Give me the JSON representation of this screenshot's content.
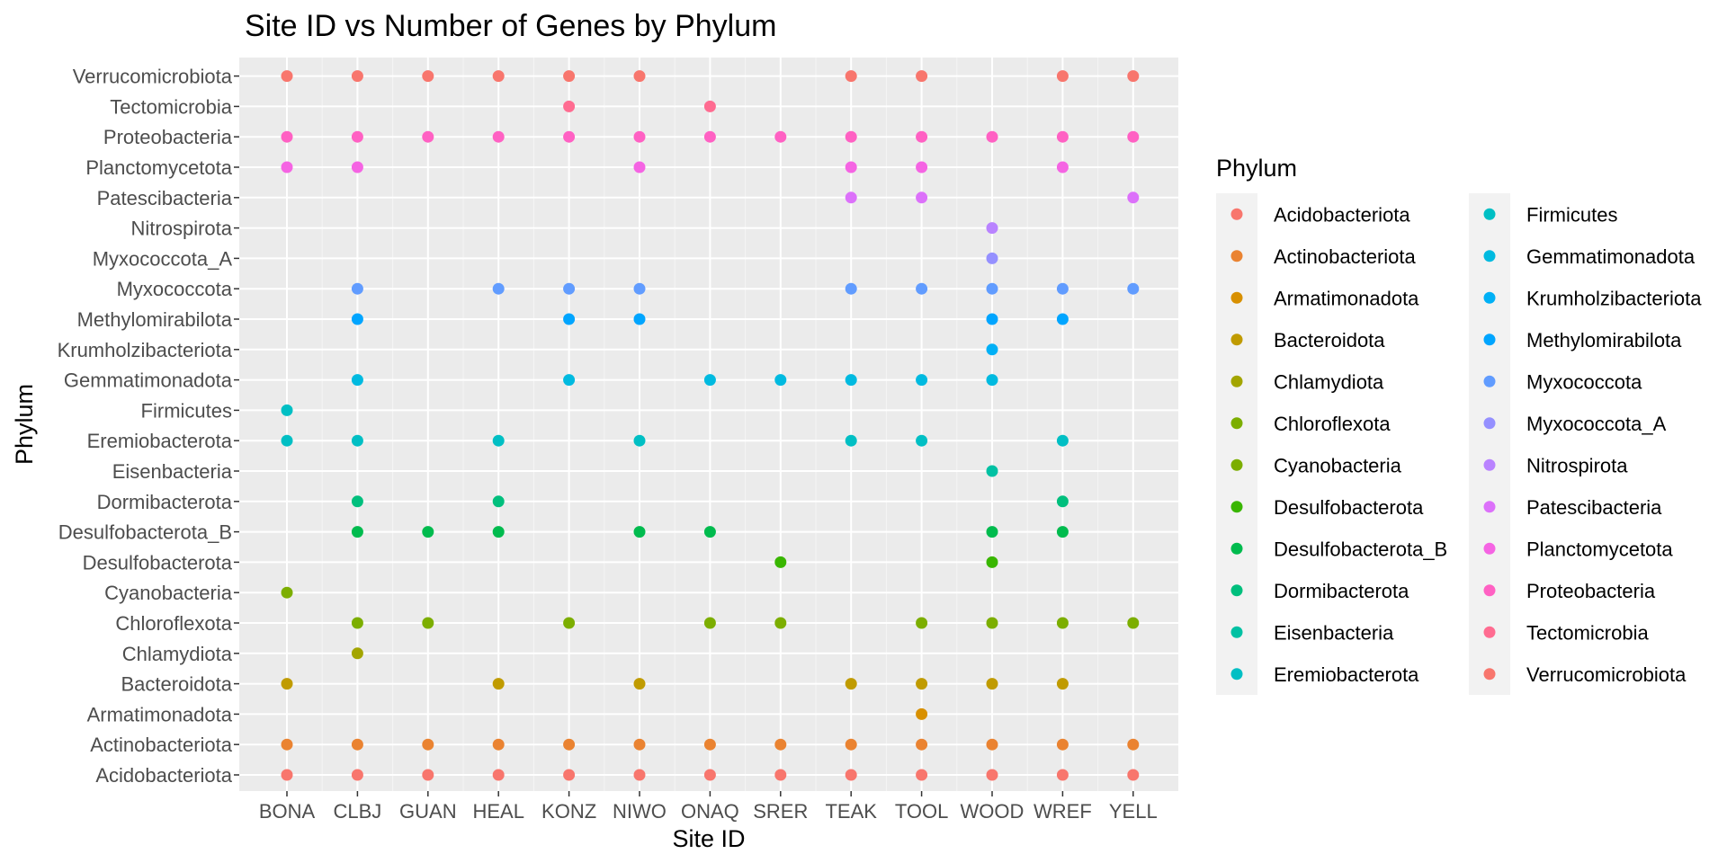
{
  "chart_data": {
    "type": "scatter",
    "title": "Site ID vs Number of Genes by Phylum",
    "xlabel": "Site ID",
    "ylabel": "Phylum",
    "grid": true,
    "legend_title": "Phylum",
    "legend_placement": "right",
    "sites": [
      "BONA",
      "CLBJ",
      "GUAN",
      "HEAL",
      "KONZ",
      "NIWO",
      "ONAQ",
      "SRER",
      "TEAK",
      "TOOL",
      "WOOD",
      "WREF",
      "YELL"
    ],
    "phyla": [
      "Acidobacteriota",
      "Actinobacteriota",
      "Armatimonadota",
      "Bacteroidota",
      "Chlamydiota",
      "Chloroflexota",
      "Cyanobacteria",
      "Desulfobacterota",
      "Desulfobacterota_B",
      "Dormibacterota",
      "Eisenbacteria",
      "Eremiobacterota",
      "Firmicutes",
      "Gemmatimonadota",
      "Krumholzibacteriota",
      "Methylomirabilota",
      "Myxococcota",
      "Myxococcota_A",
      "Nitrospirota",
      "Patescibacteria",
      "Planctomycetota",
      "Proteobacteria",
      "Tectomicrobia",
      "Verrucomicrobiota"
    ],
    "colors": {
      "Acidobacteriota": "#F8766D",
      "Actinobacteriota": "#EA8331",
      "Armatimonadota": "#D89000",
      "Bacteroidota": "#C09B00",
      "Chlamydiota": "#A3A500",
      "Chloroflexota": "#7CAE00",
      "Cyanobacteria": "#7CAE00",
      "Desulfobacterota": "#39B600",
      "Desulfobacterota_B": "#00BB4E",
      "Dormibacterota": "#00BF7D",
      "Eisenbacteria": "#00C1A3",
      "Eremiobacterota": "#00BFC4",
      "Firmicutes": "#00BFC4",
      "Gemmatimonadota": "#00BAE0",
      "Krumholzibacteriota": "#00B0F6",
      "Methylomirabilota": "#00A5FF",
      "Myxococcota": "#619CFF",
      "Myxococcota_A": "#9590FF",
      "Nitrospirota": "#B983FF",
      "Patescibacteria": "#DC71FA",
      "Planctomycetota": "#F564E3",
      "Proteobacteria": "#FF61C3",
      "Tectomicrobia": "#FF6C91",
      "Verrucomicrobiota": "#F8766D"
    },
    "points": [
      {
        "site": "BONA",
        "phylum": "Verrucomicrobiota"
      },
      {
        "site": "CLBJ",
        "phylum": "Verrucomicrobiota"
      },
      {
        "site": "GUAN",
        "phylum": "Verrucomicrobiota"
      },
      {
        "site": "HEAL",
        "phylum": "Verrucomicrobiota"
      },
      {
        "site": "KONZ",
        "phylum": "Verrucomicrobiota"
      },
      {
        "site": "NIWO",
        "phylum": "Verrucomicrobiota"
      },
      {
        "site": "TEAK",
        "phylum": "Verrucomicrobiota"
      },
      {
        "site": "TOOL",
        "phylum": "Verrucomicrobiota"
      },
      {
        "site": "WREF",
        "phylum": "Verrucomicrobiota"
      },
      {
        "site": "YELL",
        "phylum": "Verrucomicrobiota"
      },
      {
        "site": "KONZ",
        "phylum": "Tectomicrobia"
      },
      {
        "site": "ONAQ",
        "phylum": "Tectomicrobia"
      },
      {
        "site": "BONA",
        "phylum": "Proteobacteria"
      },
      {
        "site": "CLBJ",
        "phylum": "Proteobacteria"
      },
      {
        "site": "GUAN",
        "phylum": "Proteobacteria"
      },
      {
        "site": "HEAL",
        "phylum": "Proteobacteria"
      },
      {
        "site": "KONZ",
        "phylum": "Proteobacteria"
      },
      {
        "site": "NIWO",
        "phylum": "Proteobacteria"
      },
      {
        "site": "ONAQ",
        "phylum": "Proteobacteria"
      },
      {
        "site": "SRER",
        "phylum": "Proteobacteria"
      },
      {
        "site": "TEAK",
        "phylum": "Proteobacteria"
      },
      {
        "site": "TOOL",
        "phylum": "Proteobacteria"
      },
      {
        "site": "WOOD",
        "phylum": "Proteobacteria"
      },
      {
        "site": "WREF",
        "phylum": "Proteobacteria"
      },
      {
        "site": "YELL",
        "phylum": "Proteobacteria"
      },
      {
        "site": "BONA",
        "phylum": "Planctomycetota"
      },
      {
        "site": "CLBJ",
        "phylum": "Planctomycetota"
      },
      {
        "site": "NIWO",
        "phylum": "Planctomycetota"
      },
      {
        "site": "TEAK",
        "phylum": "Planctomycetota"
      },
      {
        "site": "TOOL",
        "phylum": "Planctomycetota"
      },
      {
        "site": "WREF",
        "phylum": "Planctomycetota"
      },
      {
        "site": "TEAK",
        "phylum": "Patescibacteria"
      },
      {
        "site": "TOOL",
        "phylum": "Patescibacteria"
      },
      {
        "site": "YELL",
        "phylum": "Patescibacteria"
      },
      {
        "site": "WOOD",
        "phylum": "Nitrospirota"
      },
      {
        "site": "WOOD",
        "phylum": "Myxococcota_A"
      },
      {
        "site": "CLBJ",
        "phylum": "Myxococcota"
      },
      {
        "site": "HEAL",
        "phylum": "Myxococcota"
      },
      {
        "site": "KONZ",
        "phylum": "Myxococcota"
      },
      {
        "site": "NIWO",
        "phylum": "Myxococcota"
      },
      {
        "site": "TEAK",
        "phylum": "Myxococcota"
      },
      {
        "site": "TOOL",
        "phylum": "Myxococcota"
      },
      {
        "site": "WOOD",
        "phylum": "Myxococcota"
      },
      {
        "site": "WREF",
        "phylum": "Myxococcota"
      },
      {
        "site": "YELL",
        "phylum": "Myxococcota"
      },
      {
        "site": "CLBJ",
        "phylum": "Methylomirabilota"
      },
      {
        "site": "KONZ",
        "phylum": "Methylomirabilota"
      },
      {
        "site": "NIWO",
        "phylum": "Methylomirabilota"
      },
      {
        "site": "WOOD",
        "phylum": "Methylomirabilota"
      },
      {
        "site": "WREF",
        "phylum": "Methylomirabilota"
      },
      {
        "site": "WOOD",
        "phylum": "Krumholzibacteriota"
      },
      {
        "site": "CLBJ",
        "phylum": "Gemmatimonadota"
      },
      {
        "site": "KONZ",
        "phylum": "Gemmatimonadota"
      },
      {
        "site": "ONAQ",
        "phylum": "Gemmatimonadota"
      },
      {
        "site": "SRER",
        "phylum": "Gemmatimonadota"
      },
      {
        "site": "TEAK",
        "phylum": "Gemmatimonadota"
      },
      {
        "site": "TOOL",
        "phylum": "Gemmatimonadota"
      },
      {
        "site": "WOOD",
        "phylum": "Gemmatimonadota"
      },
      {
        "site": "BONA",
        "phylum": "Firmicutes"
      },
      {
        "site": "BONA",
        "phylum": "Eremiobacterota"
      },
      {
        "site": "CLBJ",
        "phylum": "Eremiobacterota"
      },
      {
        "site": "HEAL",
        "phylum": "Eremiobacterota"
      },
      {
        "site": "NIWO",
        "phylum": "Eremiobacterota"
      },
      {
        "site": "TEAK",
        "phylum": "Eremiobacterota"
      },
      {
        "site": "TOOL",
        "phylum": "Eremiobacterota"
      },
      {
        "site": "WREF",
        "phylum": "Eremiobacterota"
      },
      {
        "site": "WOOD",
        "phylum": "Eisenbacteria"
      },
      {
        "site": "CLBJ",
        "phylum": "Dormibacterota"
      },
      {
        "site": "HEAL",
        "phylum": "Dormibacterota"
      },
      {
        "site": "WREF",
        "phylum": "Dormibacterota"
      },
      {
        "site": "CLBJ",
        "phylum": "Desulfobacterota_B"
      },
      {
        "site": "GUAN",
        "phylum": "Desulfobacterota_B"
      },
      {
        "site": "HEAL",
        "phylum": "Desulfobacterota_B"
      },
      {
        "site": "NIWO",
        "phylum": "Desulfobacterota_B"
      },
      {
        "site": "ONAQ",
        "phylum": "Desulfobacterota_B"
      },
      {
        "site": "WOOD",
        "phylum": "Desulfobacterota_B"
      },
      {
        "site": "WREF",
        "phylum": "Desulfobacterota_B"
      },
      {
        "site": "SRER",
        "phylum": "Desulfobacterota"
      },
      {
        "site": "WOOD",
        "phylum": "Desulfobacterota"
      },
      {
        "site": "BONA",
        "phylum": "Cyanobacteria"
      },
      {
        "site": "CLBJ",
        "phylum": "Chloroflexota"
      },
      {
        "site": "GUAN",
        "phylum": "Chloroflexota"
      },
      {
        "site": "KONZ",
        "phylum": "Chloroflexota"
      },
      {
        "site": "ONAQ",
        "phylum": "Chloroflexota"
      },
      {
        "site": "SRER",
        "phylum": "Chloroflexota"
      },
      {
        "site": "TOOL",
        "phylum": "Chloroflexota"
      },
      {
        "site": "WOOD",
        "phylum": "Chloroflexota"
      },
      {
        "site": "WREF",
        "phylum": "Chloroflexota"
      },
      {
        "site": "YELL",
        "phylum": "Chloroflexota"
      },
      {
        "site": "CLBJ",
        "phylum": "Chlamydiota"
      },
      {
        "site": "BONA",
        "phylum": "Bacteroidota"
      },
      {
        "site": "HEAL",
        "phylum": "Bacteroidota"
      },
      {
        "site": "NIWO",
        "phylum": "Bacteroidota"
      },
      {
        "site": "TEAK",
        "phylum": "Bacteroidota"
      },
      {
        "site": "TOOL",
        "phylum": "Bacteroidota"
      },
      {
        "site": "WOOD",
        "phylum": "Bacteroidota"
      },
      {
        "site": "WREF",
        "phylum": "Bacteroidota"
      },
      {
        "site": "TOOL",
        "phylum": "Armatimonadota"
      },
      {
        "site": "BONA",
        "phylum": "Actinobacteriota"
      },
      {
        "site": "CLBJ",
        "phylum": "Actinobacteriota"
      },
      {
        "site": "GUAN",
        "phylum": "Actinobacteriota"
      },
      {
        "site": "HEAL",
        "phylum": "Actinobacteriota"
      },
      {
        "site": "KONZ",
        "phylum": "Actinobacteriota"
      },
      {
        "site": "NIWO",
        "phylum": "Actinobacteriota"
      },
      {
        "site": "ONAQ",
        "phylum": "Actinobacteriota"
      },
      {
        "site": "SRER",
        "phylum": "Actinobacteriota"
      },
      {
        "site": "TEAK",
        "phylum": "Actinobacteriota"
      },
      {
        "site": "TOOL",
        "phylum": "Actinobacteriota"
      },
      {
        "site": "WOOD",
        "phylum": "Actinobacteriota"
      },
      {
        "site": "WREF",
        "phylum": "Actinobacteriota"
      },
      {
        "site": "YELL",
        "phylum": "Actinobacteriota"
      },
      {
        "site": "BONA",
        "phylum": "Acidobacteriota"
      },
      {
        "site": "CLBJ",
        "phylum": "Acidobacteriota"
      },
      {
        "site": "GUAN",
        "phylum": "Acidobacteriota"
      },
      {
        "site": "HEAL",
        "phylum": "Acidobacteriota"
      },
      {
        "site": "KONZ",
        "phylum": "Acidobacteriota"
      },
      {
        "site": "NIWO",
        "phylum": "Acidobacteriota"
      },
      {
        "site": "ONAQ",
        "phylum": "Acidobacteriota"
      },
      {
        "site": "SRER",
        "phylum": "Acidobacteriota"
      },
      {
        "site": "TEAK",
        "phylum": "Acidobacteriota"
      },
      {
        "site": "TOOL",
        "phylum": "Acidobacteriota"
      },
      {
        "site": "WOOD",
        "phylum": "Acidobacteriota"
      },
      {
        "site": "WREF",
        "phylum": "Acidobacteriota"
      },
      {
        "site": "YELL",
        "phylum": "Acidobacteriota"
      }
    ]
  }
}
